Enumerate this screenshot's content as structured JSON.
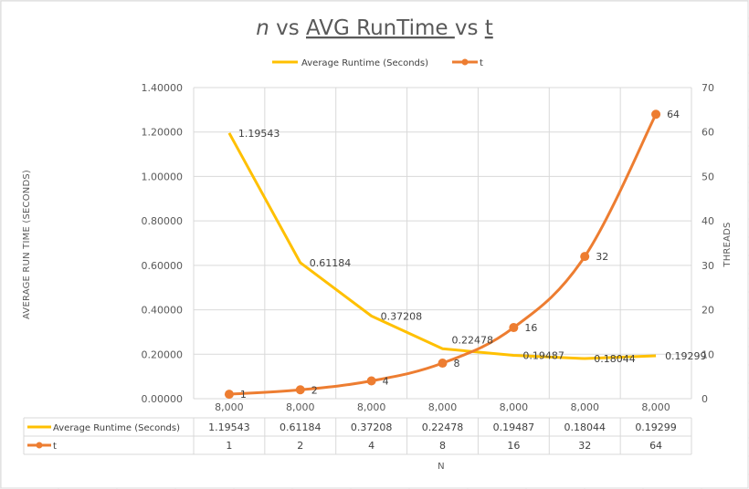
{
  "chart_data": {
    "type": "line",
    "title": {
      "n": "n",
      "vs1": " vs ",
      "avg": "AVG RunTime ",
      "vs2": "vs ",
      "t": "t"
    },
    "categories": [
      "8,000",
      "8,000",
      "8,000",
      "8,000",
      "8,000",
      "8,000",
      "8,000"
    ],
    "xlabel": "N",
    "ylabel_left": "AVERAGE RUN TIME (SECONDS)",
    "ylabel_right": "THREADS",
    "y_left": {
      "min": 0,
      "max": 1.4,
      "ticks": [
        "0.00000",
        "0.20000",
        "0.40000",
        "0.60000",
        "0.80000",
        "1.00000",
        "1.20000",
        "1.40000"
      ]
    },
    "y_right": {
      "min": 0,
      "max": 70,
      "ticks": [
        "0",
        "10",
        "20",
        "30",
        "40",
        "50",
        "60",
        "70"
      ]
    },
    "series": [
      {
        "name": "Average Runtime (Seconds)",
        "axis": "left",
        "color": "#FFC000",
        "values": [
          1.19543,
          0.61184,
          0.37208,
          0.22478,
          0.19487,
          0.18044,
          0.19299
        ],
        "labels": [
          "1.19543",
          "0.61184",
          "0.37208",
          "0.22478",
          "0.19487",
          "0.18044",
          "0.19299"
        ]
      },
      {
        "name": "t",
        "axis": "right",
        "color": "#ED7D31",
        "values": [
          1,
          2,
          4,
          8,
          16,
          32,
          64
        ],
        "labels": [
          "1",
          "2",
          "4",
          "8",
          "16",
          "32",
          "64"
        ]
      }
    ],
    "legend": "top",
    "grid": true,
    "data_table": true
  }
}
